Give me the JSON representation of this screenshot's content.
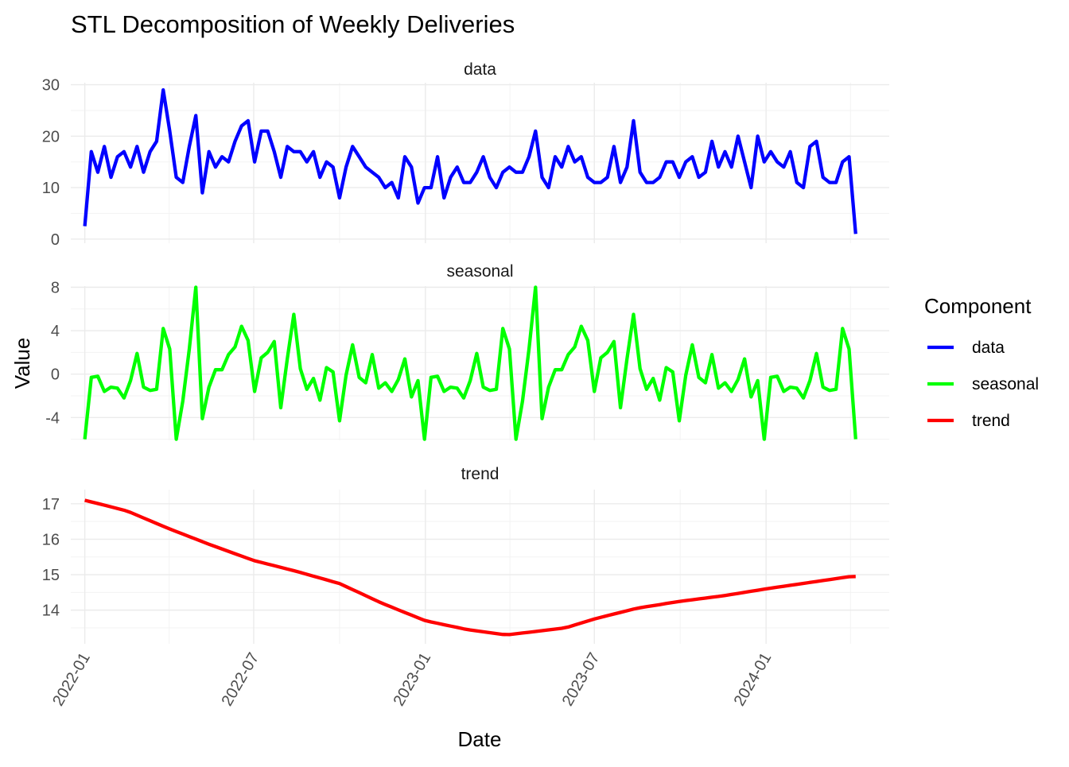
{
  "chart_data": {
    "type": "line",
    "title": "STL Decomposition of Weekly Deliveries",
    "xlabel": "Date",
    "ylabel": "Value",
    "legend": {
      "title": "Component",
      "placement": "right",
      "entries": [
        {
          "label": "data",
          "color": "#0000ff"
        },
        {
          "label": "seasonal",
          "color": "#00ff00"
        },
        {
          "label": "trend",
          "color": "#ff0000"
        }
      ]
    },
    "x_ticks": [
      {
        "label": "2022-01",
        "date": "2022-01-01"
      },
      {
        "label": "2022-07",
        "date": "2022-07-01"
      },
      {
        "label": "2023-01",
        "date": "2023-01-01"
      },
      {
        "label": "2023-07",
        "date": "2023-07-01"
      },
      {
        "label": "2024-01",
        "date": "2024-01-01"
      }
    ],
    "x_range": [
      "2021-12-17",
      "2024-05-12"
    ],
    "dates": {
      "start": "2022-01-01",
      "step_days": 7,
      "count": 119
    },
    "panels": [
      {
        "name": "data",
        "color": "#0000ff",
        "ylim": [
          -0.8,
          30.4
        ],
        "y_ticks": [
          0,
          10,
          20,
          30
        ],
        "values": [
          2.5,
          17,
          13,
          18,
          12,
          16,
          17,
          14,
          18,
          13,
          17,
          19,
          29,
          21,
          12,
          11,
          18,
          24,
          9,
          17,
          14,
          16,
          15,
          19,
          22,
          23,
          15,
          21,
          21,
          17,
          12,
          18,
          17,
          17,
          15,
          17,
          12,
          15,
          14,
          8,
          14,
          18,
          16,
          14,
          13,
          12,
          10,
          11,
          8,
          16,
          14,
          7,
          10,
          10,
          16,
          8,
          12,
          14,
          11,
          11,
          13,
          16,
          12,
          10,
          13,
          14,
          13,
          13,
          16,
          21,
          12,
          10,
          16,
          14,
          18,
          15,
          16,
          12,
          11,
          11,
          12,
          18,
          11,
          14,
          23,
          13,
          11,
          11,
          12,
          15,
          15,
          12,
          15,
          16,
          12,
          13,
          19,
          14,
          17,
          14,
          20,
          15,
          10,
          20,
          15,
          17,
          15,
          14,
          17,
          11,
          10,
          18,
          19,
          12,
          11,
          11,
          15,
          16,
          1
        ]
      },
      {
        "name": "seasonal",
        "color": "#00ff00",
        "ylim": [
          -6.1,
          8.1
        ],
        "y_ticks": [
          -4,
          0,
          4,
          8
        ],
        "values": [
          -6,
          -0.3,
          -0.2,
          -1.6,
          -1.2,
          -1.3,
          -2.2,
          -0.6,
          1.9,
          -1.2,
          -1.5,
          -1.4,
          4.2,
          2.3,
          -6,
          -2.5,
          2.3,
          8,
          -4.1,
          -1.2,
          0.4,
          0.4,
          1.8,
          2.5,
          4.4,
          3.1,
          -1.6,
          1.5,
          2,
          3,
          -3.1,
          1.4,
          5.5,
          0.5,
          -1.4,
          -0.4,
          -2.4,
          0.6,
          0.2,
          -4.3,
          -0.1,
          2.7,
          -0.3,
          -0.8,
          1.8,
          -1.3,
          -0.8,
          -1.6,
          -0.5,
          1.4,
          -2.1,
          -0.6,
          -6,
          -0.3,
          -0.2,
          -1.6,
          -1.2,
          -1.3,
          -2.2,
          -0.6,
          1.9,
          -1.2,
          -1.5,
          -1.4,
          4.2,
          2.3,
          -6,
          -2.5,
          2.3,
          8,
          -4.1,
          -1.2,
          0.4,
          0.4,
          1.8,
          2.5,
          4.4,
          3.1,
          -1.6,
          1.5,
          2,
          3,
          -3.1,
          1.4,
          5.5,
          0.5,
          -1.4,
          -0.4,
          -2.4,
          0.6,
          0.2,
          -4.3,
          -0.1,
          2.7,
          -0.3,
          -0.8,
          1.8,
          -1.3,
          -0.8,
          -1.6,
          -0.5,
          1.4,
          -2.1,
          -0.6,
          -6,
          -0.3,
          -0.2,
          -1.6,
          -1.2,
          -1.3,
          -2.2,
          -0.6,
          1.9,
          -1.2,
          -1.5,
          -1.4,
          4.2,
          2.3,
          -6
        ]
      },
      {
        "name": "trend",
        "color": "#ff0000",
        "ylim": [
          13.05,
          17.4
        ],
        "y_ticks": [
          14,
          15,
          16,
          17
        ],
        "knots": [
          {
            "date": "2022-01-01",
            "value": 17.1
          },
          {
            "date": "2022-02-15",
            "value": 16.8
          },
          {
            "date": "2022-04-01",
            "value": 16.3
          },
          {
            "date": "2022-05-15",
            "value": 15.85
          },
          {
            "date": "2022-07-01",
            "value": 15.4
          },
          {
            "date": "2022-08-15",
            "value": 15.1
          },
          {
            "date": "2022-10-01",
            "value": 14.75
          },
          {
            "date": "2022-11-15",
            "value": 14.2
          },
          {
            "date": "2023-01-01",
            "value": 13.7
          },
          {
            "date": "2023-02-15",
            "value": 13.45
          },
          {
            "date": "2023-03-29",
            "value": 13.3
          },
          {
            "date": "2023-05-31",
            "value": 13.5
          },
          {
            "date": "2023-07-01",
            "value": 13.75
          },
          {
            "date": "2023-08-15",
            "value": 14.05
          },
          {
            "date": "2023-10-01",
            "value": 14.25
          },
          {
            "date": "2023-11-15",
            "value": 14.4
          },
          {
            "date": "2024-01-01",
            "value": 14.6
          },
          {
            "date": "2024-04-01",
            "value": 14.95
          }
        ]
      }
    ]
  }
}
